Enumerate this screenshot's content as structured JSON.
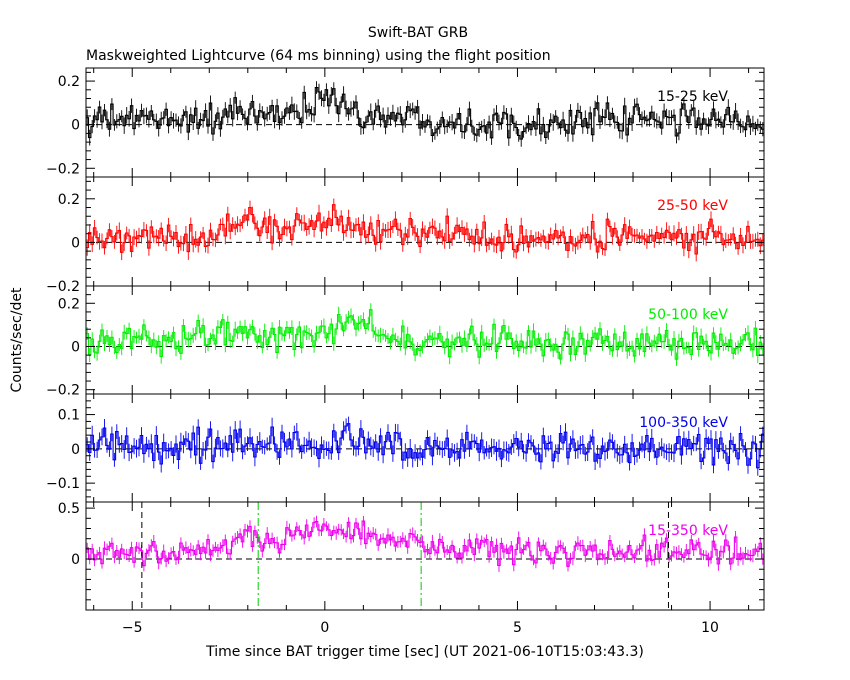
{
  "figure": {
    "title": "Swift-BAT GRB",
    "subtitle": "Maskweighted Lightcurve (64 ms binning) using the flight position",
    "xlabel": "Time since BAT trigger time [sec] (UT 2021-06-10T15:03:43.3)",
    "ylabel": "Counts/sec/det"
  },
  "chart_data": [
    {
      "type": "line",
      "step": true,
      "name": "15-25 keV",
      "color": "#000000",
      "xlim": [
        -6.2,
        11.4
      ],
      "ylim": [
        -0.24,
        0.26
      ],
      "ytick_values": [
        -0.2,
        0,
        0.2
      ],
      "ytick_labels": [
        "−0.2",
        "0",
        "0.2"
      ],
      "xtick_values": [
        -5,
        0,
        5,
        10
      ],
      "xtick_labels": [
        "",
        "",
        "",
        ""
      ],
      "zero_line": true,
      "anchors": {
        "x": [
          -6.2,
          -5,
          -4,
          -3,
          -2,
          -1,
          -0.5,
          0,
          0.5,
          1,
          2,
          3,
          4,
          5,
          6,
          7,
          8,
          9,
          10,
          11.4
        ],
        "y": [
          0.02,
          0.02,
          0.03,
          0.03,
          0.04,
          0.05,
          0.08,
          0.14,
          0.08,
          0.05,
          0.04,
          0.02,
          0.01,
          0.01,
          0.01,
          0.02,
          0.02,
          0.02,
          0.03,
          0.01
        ]
      },
      "noise": 0.048
    },
    {
      "type": "line",
      "step": true,
      "name": "25-50 keV",
      "color": "#ff0000",
      "xlim": [
        -6.2,
        11.4
      ],
      "ylim": [
        -0.2,
        0.3
      ],
      "ytick_values": [
        -0.2,
        0,
        0.2
      ],
      "ytick_labels": [
        "−0.2",
        "0",
        "0.2"
      ],
      "xtick_values": [
        -5,
        0,
        5,
        10
      ],
      "xtick_labels": [
        "",
        "",
        "",
        ""
      ],
      "zero_line": true,
      "anchors": {
        "x": [
          -6.2,
          -5,
          -4,
          -3,
          -2,
          -1.5,
          -1,
          0,
          0.5,
          1,
          2,
          3,
          4,
          5,
          6,
          7,
          8,
          9,
          10,
          11.4
        ],
        "y": [
          0.02,
          0.03,
          0.02,
          0.04,
          0.1,
          0.08,
          0.05,
          0.1,
          0.09,
          0.07,
          0.05,
          0.04,
          0.03,
          0.02,
          0.02,
          0.02,
          0.02,
          0.01,
          0.02,
          0.02
        ]
      },
      "noise": 0.048
    },
    {
      "type": "line",
      "step": true,
      "name": "50-100 keV",
      "color": "#00ee00",
      "xlim": [
        -6.2,
        11.4
      ],
      "ylim": [
        -0.22,
        0.28
      ],
      "ytick_values": [
        -0.2,
        0,
        0.2
      ],
      "ytick_labels": [
        "−0.2",
        "0",
        "0.2"
      ],
      "xtick_values": [
        -5,
        0,
        5,
        10
      ],
      "xtick_labels": [
        "",
        "",
        "",
        ""
      ],
      "zero_line": true,
      "anchors": {
        "x": [
          -6.2,
          -5,
          -4,
          -3,
          -2,
          -1,
          0,
          0.5,
          1,
          1.5,
          2,
          3,
          4,
          5,
          6,
          7,
          8,
          9,
          10,
          11.4
        ],
        "y": [
          0.02,
          0.03,
          0.02,
          0.04,
          0.05,
          0.04,
          0.07,
          0.1,
          0.11,
          0.05,
          0.03,
          0.03,
          0.02,
          0.02,
          0.02,
          0.02,
          0.01,
          0.01,
          0.01,
          0.01
        ]
      },
      "noise": 0.045
    },
    {
      "type": "line",
      "step": true,
      "name": "100-350 keV",
      "color": "#0000ee",
      "xlim": [
        -6.2,
        11.4
      ],
      "ylim": [
        -0.155,
        0.16
      ],
      "ytick_values": [
        -0.1,
        0,
        0.1
      ],
      "ytick_labels": [
        "−0.1",
        "0",
        "0.1"
      ],
      "xtick_values": [
        -5,
        0,
        5,
        10
      ],
      "xtick_labels": [
        "",
        "",
        "",
        ""
      ],
      "zero_line": true,
      "anchors": {
        "x": [
          -6.2,
          -5,
          -4,
          -3,
          -2,
          -1,
          0,
          1,
          2,
          3,
          4,
          5,
          6,
          7,
          8,
          9,
          10,
          11.4
        ],
        "y": [
          0.01,
          0.01,
          0.01,
          0.01,
          0.03,
          0.02,
          0.02,
          0.02,
          0.01,
          0.01,
          0.01,
          0.0,
          0.0,
          0.0,
          0.0,
          0.0,
          0.0,
          0.0
        ]
      },
      "noise": 0.035
    },
    {
      "type": "line",
      "step": true,
      "name": "15-350 keV",
      "color": "#ee00ee",
      "xlim": [
        -6.2,
        11.4
      ],
      "ylim": [
        -0.5,
        0.56
      ],
      "ytick_values": [
        0,
        0.5
      ],
      "ytick_labels": [
        "0",
        "0.5"
      ],
      "xtick_values": [
        -5,
        0,
        5,
        10
      ],
      "xtick_labels": [
        "−5",
        "0",
        "5",
        "10"
      ],
      "zero_line": true,
      "anchors": {
        "x": [
          -6.2,
          -5,
          -4,
          -3,
          -2,
          -1.5,
          -1,
          0,
          0.5,
          1,
          2,
          3,
          4,
          5,
          6,
          7,
          8,
          9,
          10,
          11.4
        ],
        "y": [
          0.07,
          0.05,
          0.06,
          0.1,
          0.22,
          0.2,
          0.18,
          0.3,
          0.28,
          0.25,
          0.18,
          0.12,
          0.1,
          0.08,
          0.07,
          0.07,
          0.07,
          0.07,
          0.06,
          0.06
        ]
      },
      "noise": 0.085,
      "vlines": [
        {
          "x": -4.75,
          "style": "dashed",
          "color": "#000000"
        },
        {
          "x": 8.92,
          "style": "dashed",
          "color": "#000000"
        },
        {
          "x": -1.73,
          "style": "dashdot",
          "color": "#00cc00"
        },
        {
          "x": 2.5,
          "style": "dashdot",
          "color": "#00cc00"
        }
      ]
    }
  ]
}
